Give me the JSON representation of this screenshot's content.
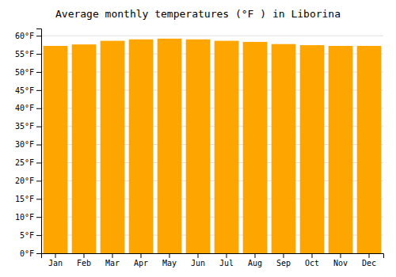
{
  "chart_data": {
    "type": "bar",
    "title": "Average monthly temperatures (°F ) in Liborina",
    "categories": [
      "Jan",
      "Feb",
      "Mar",
      "Apr",
      "May",
      "Jun",
      "Jul",
      "Aug",
      "Sep",
      "Oct",
      "Nov",
      "Dec"
    ],
    "values": [
      57.2,
      57.6,
      58.6,
      59.0,
      59.2,
      59.0,
      58.6,
      58.3,
      57.7,
      57.4,
      57.2,
      57.2
    ],
    "color": "#FFA500",
    "ylim": [
      0,
      62
    ],
    "yticks": [
      {
        "value": 0,
        "label": "0°F"
      },
      {
        "value": 5,
        "label": "5°F"
      },
      {
        "value": 10,
        "label": "10°F"
      },
      {
        "value": 15,
        "label": "15°F"
      },
      {
        "value": 20,
        "label": "20°F"
      },
      {
        "value": 25,
        "label": "25°F"
      },
      {
        "value": 30,
        "label": "30°F"
      },
      {
        "value": 35,
        "label": "35°F"
      },
      {
        "value": 40,
        "label": "40°F"
      },
      {
        "value": 45,
        "label": "45°F"
      },
      {
        "value": 50,
        "label": "50°F"
      },
      {
        "value": 55,
        "label": "55°F"
      },
      {
        "value": 60,
        "label": "60°F"
      }
    ],
    "grid": true
  }
}
